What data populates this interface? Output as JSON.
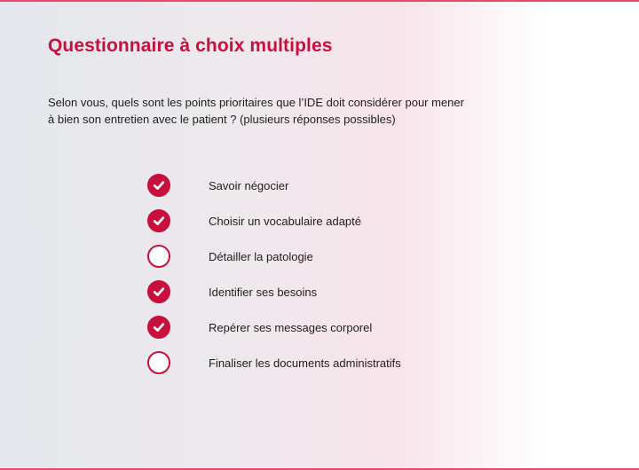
{
  "quiz": {
    "title": "Questionnaire à choix multiples",
    "question": "Selon vous, quels sont les points prioritaires que l’IDE doit considérer pour mener à bien son entretien avec le patient ? (plusieurs réponses possibles)",
    "options": [
      {
        "label": "Savoir négocier",
        "checked": true
      },
      {
        "label": "Choisir un vocabulaire adapté",
        "checked": true
      },
      {
        "label": "Détailler la patologie",
        "checked": false
      },
      {
        "label": "Identifier ses besoins",
        "checked": true
      },
      {
        "label": "Repérer ses messages corporel",
        "checked": true
      },
      {
        "label": "Finaliser les documents administratifs",
        "checked": false
      }
    ]
  },
  "colors": {
    "accent": "#c8103e",
    "text": "#1e1e1e",
    "border_lines": "#e8486e"
  },
  "icons": {
    "checked": "check-icon",
    "unchecked": "empty-circle-icon"
  }
}
